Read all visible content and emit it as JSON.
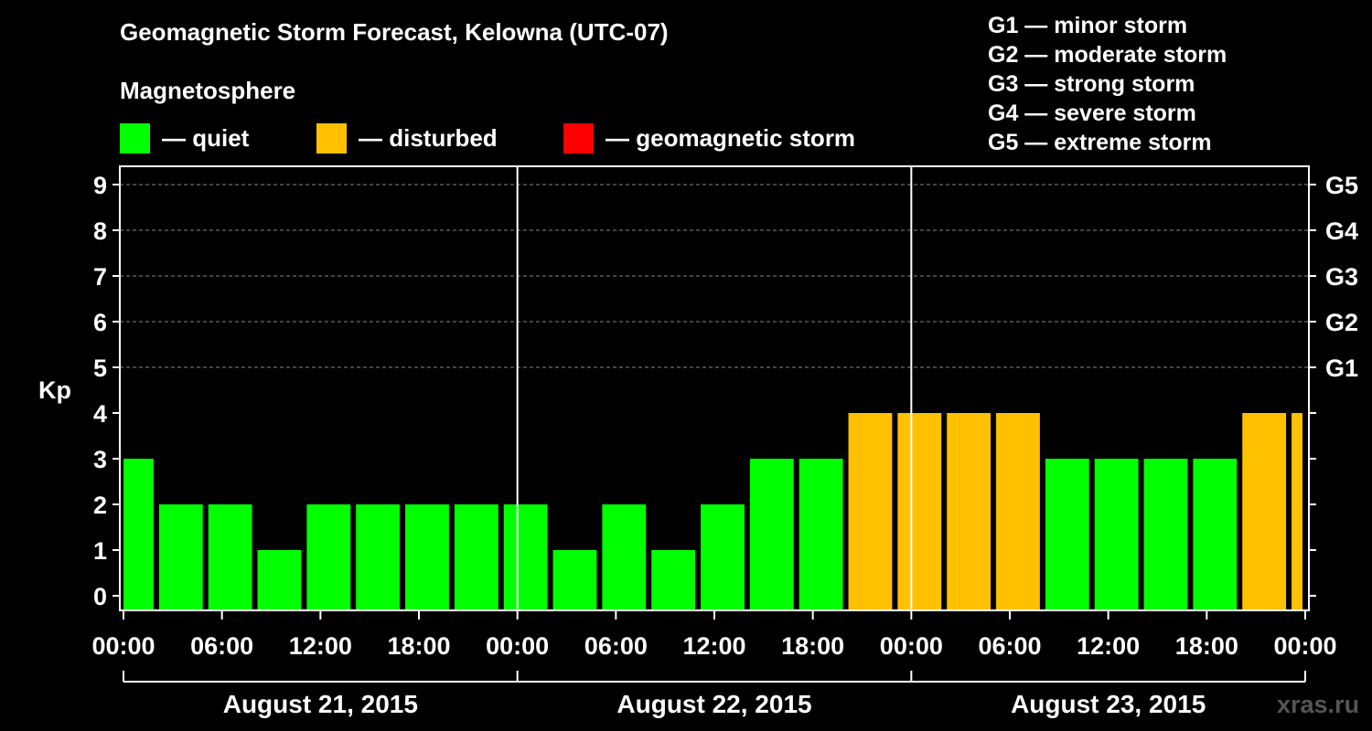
{
  "title": "Geomagnetic Storm Forecast, Kelowna (UTC-07)",
  "subtitle": "Magnetosphere",
  "legend": [
    {
      "label": "— quiet",
      "color": "#00ff00"
    },
    {
      "label": "— disturbed",
      "color": "#ffc000"
    },
    {
      "label": "— geomagnetic storm",
      "color": "#ff0000"
    }
  ],
  "g_legend": [
    "G1 — minor storm",
    "G2 — moderate storm",
    "G3 — strong storm",
    "G4 — severe storm",
    "G5 — extreme storm"
  ],
  "watermark": "xras.ru",
  "chart_data": {
    "type": "bar",
    "ylabel": "Kp",
    "ylim": [
      0,
      9
    ],
    "yticks": [
      0,
      1,
      2,
      3,
      4,
      5,
      6,
      7,
      8,
      9
    ],
    "right_axis_ticks": [
      {
        "value": 5,
        "label": "G1"
      },
      {
        "value": 6,
        "label": "G2"
      },
      {
        "value": 7,
        "label": "G3"
      },
      {
        "value": 8,
        "label": "G4"
      },
      {
        "value": 9,
        "label": "G5"
      }
    ],
    "grid": "horizontal dashed",
    "x_tick_labels": [
      "00:00",
      "06:00",
      "12:00",
      "18:00",
      "00:00",
      "06:00",
      "12:00",
      "18:00",
      "00:00",
      "06:00",
      "12:00",
      "18:00",
      "00:00"
    ],
    "days": [
      "August 21, 2015",
      "August 22, 2015",
      "August 23, 2015"
    ],
    "colors": {
      "quiet": "#00ff00",
      "disturbed": "#ffc000",
      "storm": "#ff0000"
    },
    "bars": [
      {
        "start_hour": 0,
        "end_hour": 2,
        "kp": 3
      },
      {
        "start_hour": 2,
        "end_hour": 5,
        "kp": 2
      },
      {
        "start_hour": 5,
        "end_hour": 8,
        "kp": 2
      },
      {
        "start_hour": 8,
        "end_hour": 11,
        "kp": 1
      },
      {
        "start_hour": 11,
        "end_hour": 14,
        "kp": 2
      },
      {
        "start_hour": 14,
        "end_hour": 17,
        "kp": 2
      },
      {
        "start_hour": 17,
        "end_hour": 20,
        "kp": 2
      },
      {
        "start_hour": 20,
        "end_hour": 23,
        "kp": 2
      },
      {
        "start_hour": 23,
        "end_hour": 26,
        "kp": 2
      },
      {
        "start_hour": 26,
        "end_hour": 29,
        "kp": 1
      },
      {
        "start_hour": 29,
        "end_hour": 32,
        "kp": 2
      },
      {
        "start_hour": 32,
        "end_hour": 35,
        "kp": 1
      },
      {
        "start_hour": 35,
        "end_hour": 38,
        "kp": 2
      },
      {
        "start_hour": 38,
        "end_hour": 41,
        "kp": 3
      },
      {
        "start_hour": 41,
        "end_hour": 44,
        "kp": 3
      },
      {
        "start_hour": 44,
        "end_hour": 47,
        "kp": 4
      },
      {
        "start_hour": 47,
        "end_hour": 50,
        "kp": 4
      },
      {
        "start_hour": 50,
        "end_hour": 53,
        "kp": 4
      },
      {
        "start_hour": 53,
        "end_hour": 56,
        "kp": 4
      },
      {
        "start_hour": 56,
        "end_hour": 59,
        "kp": 3
      },
      {
        "start_hour": 59,
        "end_hour": 62,
        "kp": 3
      },
      {
        "start_hour": 62,
        "end_hour": 65,
        "kp": 3
      },
      {
        "start_hour": 65,
        "end_hour": 68,
        "kp": 3
      },
      {
        "start_hour": 68,
        "end_hour": 71,
        "kp": 4
      },
      {
        "start_hour": 71,
        "end_hour": 72,
        "kp": 4
      }
    ]
  }
}
